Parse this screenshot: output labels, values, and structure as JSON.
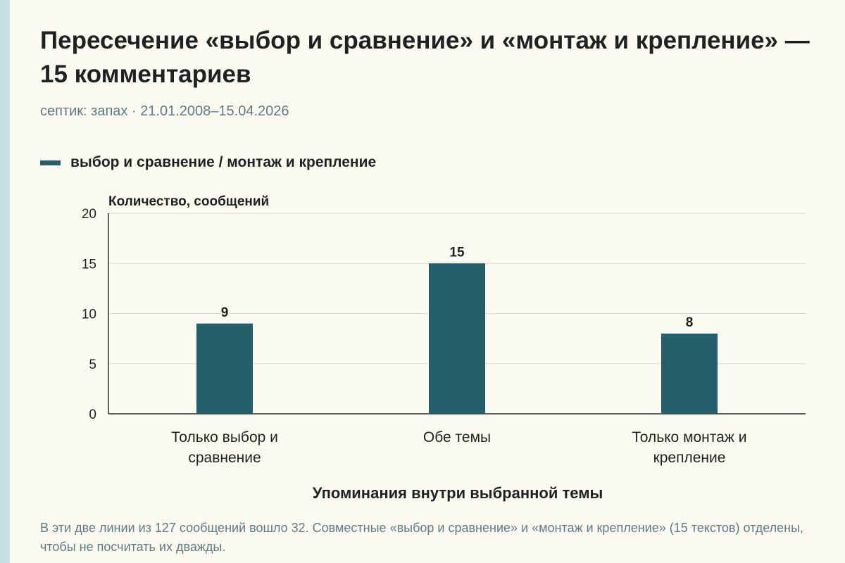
{
  "title": "Пересечение «выбор и сравнение» и «монтаж и крепление» — 15 комментариев",
  "subtitle": "септик: запах · 21.01.2008–15.04.2026",
  "legend": {
    "label": "выбор и сравнение / монтаж и крепление",
    "color": "#24606c"
  },
  "footnote": "В эти две линии из 127 сообщений вошло 32. Совместные «выбор и сравнение» и «монтаж и крепление» (15 текстов) отделены, чтобы не посчитать их дважды.",
  "chart_data": {
    "type": "bar",
    "categories": [
      [
        "Только выбор и",
        "сравнение"
      ],
      [
        "Обе темы"
      ],
      [
        "Только монтаж и",
        "крепление"
      ]
    ],
    "series": [
      {
        "name": "выбор и сравнение / монтаж и крепление",
        "values": [
          9,
          15,
          8
        ],
        "color": "#24606c"
      }
    ],
    "ylabel": "Количество, сообщений",
    "xlabel": "Упоминания внутри выбранной темы",
    "ylim": [
      0,
      20
    ],
    "yticks": [
      0,
      5,
      10,
      15,
      20
    ],
    "grid": true,
    "data_labels": true
  }
}
